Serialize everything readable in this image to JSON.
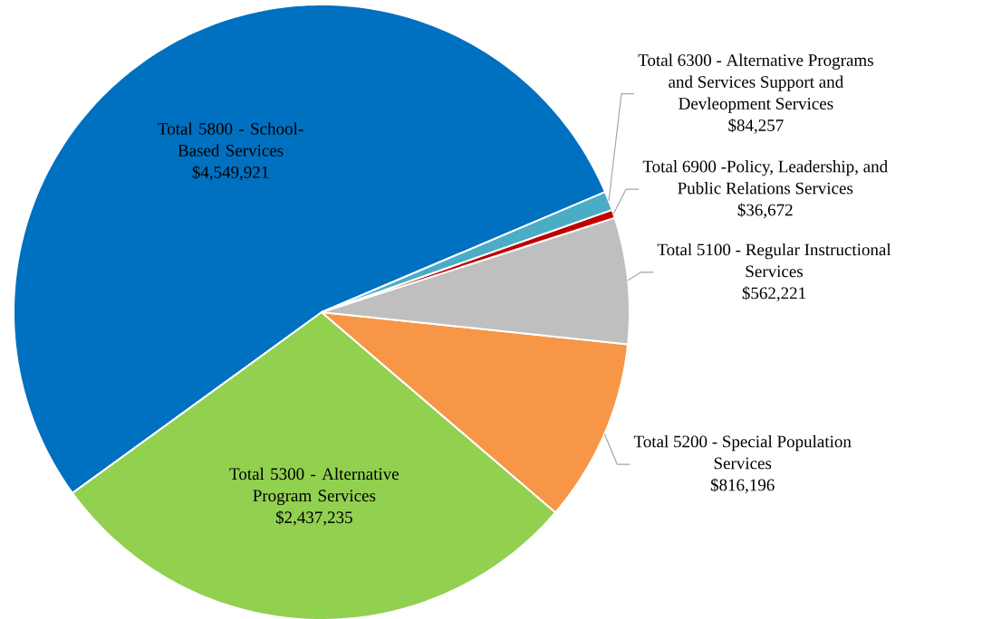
{
  "chart_data": {
    "type": "pie",
    "categories": [
      "Total 5800 - School-Based Services",
      "Total 5300 - Alternative Program Services",
      "Total 5200 - Special Population Services",
      "Total 5100 - Regular Instructional Services",
      "Total 6900 -Policy, Leadership, and Public Relations Services",
      "Total 6300 - Alternative Programs and Services Support and Devleopment Services"
    ],
    "values": [
      4549921,
      2437235,
      816196,
      562221,
      36672,
      84257
    ],
    "colors": [
      "#0070c0",
      "#92d050",
      "#f79646",
      "#bfbfbf",
      "#c00000",
      "#4bacc6"
    ],
    "value_labels": [
      "$4,549,921",
      "$2,437,235",
      "$816,196",
      "$562,221",
      "$36,672",
      "$84,257"
    ]
  }
}
